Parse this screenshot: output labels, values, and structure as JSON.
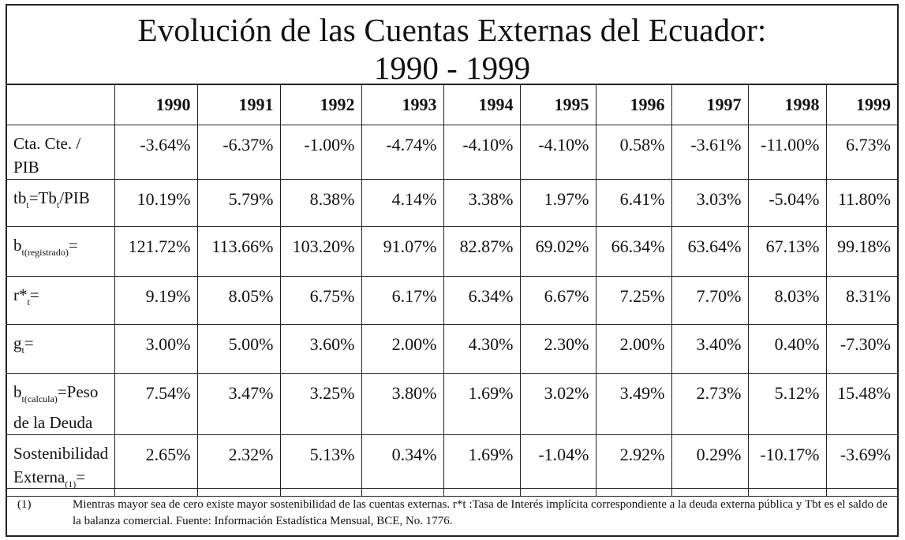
{
  "title": {
    "line1": "Evolución de las Cuentas Externas del Ecuador:",
    "line2": "1990 - 1999"
  },
  "years": [
    "1990",
    "1991",
    "1992",
    "1993",
    "1994",
    "1995",
    "1996",
    "1997",
    "1998",
    "1999"
  ],
  "rows": [
    {
      "label_main": "Cta. Cte. /",
      "label_line2": "PIB",
      "values": [
        "-3.64%",
        "-6.37%",
        "-1.00%",
        "-4.74%",
        "-4.10%",
        "-4.10%",
        "0.58%",
        "-3.61%",
        "-11.00%",
        "6.73%"
      ]
    },
    {
      "label_a": "tb",
      "label_a_sub": "t",
      "label_b": "=Tb",
      "label_b_sub": "t",
      "label_c": "/PIB",
      "values": [
        "10.19%",
        "5.79%",
        "8.38%",
        "4.14%",
        "3.38%",
        "1.97%",
        "6.41%",
        "3.03%",
        "-5.04%",
        "11.80%"
      ]
    },
    {
      "label_a": "b",
      "label_a_sub": "t(registrado)",
      "label_b": "=",
      "values": [
        "121.72%",
        "113.66%",
        "103.20%",
        "91.07%",
        "82.87%",
        "69.02%",
        "66.34%",
        "63.64%",
        "67.13%",
        "99.18%"
      ]
    },
    {
      "label_a": "r*",
      "label_a_sub": "t",
      "label_b": "=",
      "values": [
        "9.19%",
        "8.05%",
        "6.75%",
        "6.17%",
        "6.34%",
        "6.67%",
        "7.25%",
        "7.70%",
        "8.03%",
        "8.31%"
      ]
    },
    {
      "label_a": "g",
      "label_a_sub": "t",
      "label_b": "=",
      "values": [
        "3.00%",
        "5.00%",
        "3.60%",
        "2.00%",
        "4.30%",
        "2.30%",
        "2.00%",
        "3.40%",
        "0.40%",
        "-7.30%"
      ]
    },
    {
      "label_a": "b",
      "label_a_sub": "t(calcula)",
      "label_b": "=Peso",
      "label_line2": "de la Deuda",
      "values": [
        "7.54%",
        "3.47%",
        "3.25%",
        "3.80%",
        "1.69%",
        "3.02%",
        "3.49%",
        "2.73%",
        "5.12%",
        "15.48%"
      ]
    },
    {
      "label_main": "Sostenibilidad",
      "label_line2": "Externa",
      "label_line2_sub": "(1)",
      "label_line2_tail": "=",
      "values": [
        "2.65%",
        "2.32%",
        "5.13%",
        "0.34%",
        "1.69%",
        "-1.04%",
        "2.92%",
        "0.29%",
        "-10.17%",
        "-3.69%"
      ]
    }
  ],
  "footnote": {
    "mark": "(1)",
    "text": "Mientras mayor sea de cero existe mayor sostenibilidad de las cuentas externas. r*t :Tasa de Interés implícita correspondiente a la deuda externa pública y Tbt es el saldo de la balanza comercial. Fuente: Información Estadística Mensual, BCE, No. 1776."
  }
}
